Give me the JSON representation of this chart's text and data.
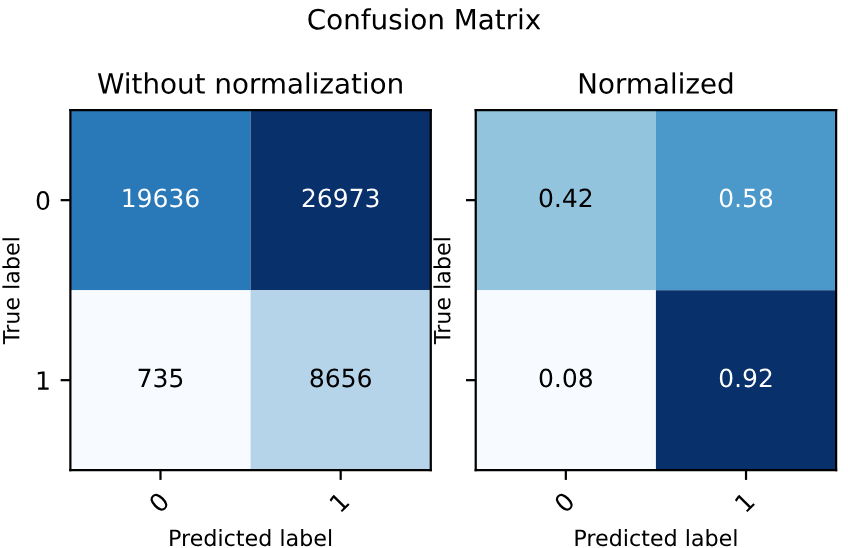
{
  "chart_data": [
    {
      "type": "heatmap",
      "title": "Without normalization",
      "annotations": [
        "Confusion Matrix"
      ],
      "xlabel": "Predicted label",
      "ylabel": "True label",
      "categories": [
        "0",
        "1"
      ],
      "y_categories": [
        "0",
        "1"
      ],
      "cells": [
        [
          19636,
          26973
        ],
        [
          735,
          8656
        ]
      ],
      "data_labels": true
    },
    {
      "type": "heatmap",
      "title": "Normalized",
      "xlabel": "Predicted label",
      "ylabel": "True label",
      "categories": [
        "0",
        "1"
      ],
      "y_categories": [
        "0",
        "1"
      ],
      "cells": [
        [
          0.42,
          0.58
        ],
        [
          0.08,
          0.92
        ]
      ],
      "data_labels": true,
      "tick_labels": "x"
    }
  ]
}
